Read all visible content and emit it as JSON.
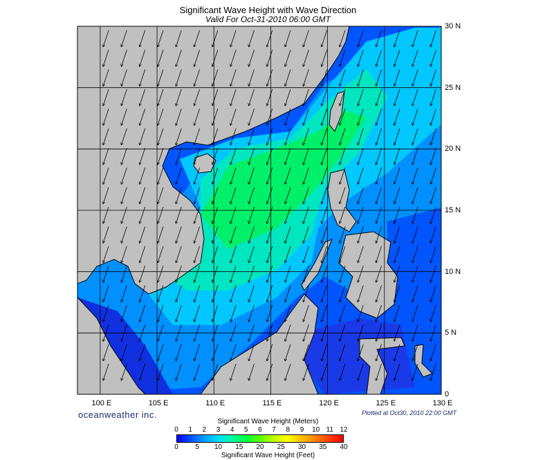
{
  "title": "Significant Wave Height with Wave Direction",
  "subtitle": "Valid For Oct-31-2010 06:00 GMT",
  "map": {
    "lon_range": [
      98,
      130
    ],
    "lat_range": [
      0,
      30
    ],
    "lon_labels": [
      "100 E",
      "105 E",
      "110 E",
      "115 E",
      "120 E",
      "125 E",
      "130 E"
    ],
    "lat_labels": [
      "30 N",
      "25 N",
      "20 N",
      "15 N",
      "10 N",
      "5 N",
      "0"
    ],
    "land_color": "#c0c0c0",
    "grid": true
  },
  "brand": "oceanweather inc.",
  "plotted": "Plotted at Oct30, 2010 22:00 GMT",
  "colorbar": {
    "title_meters": "Significant Wave Height (Meters)",
    "title_feet": "Significant Wave Height (Feet)",
    "meters_ticks": [
      "0",
      "1",
      "2",
      "3",
      "4",
      "5",
      "6",
      "7",
      "8",
      "9",
      "10",
      "11",
      "12"
    ],
    "feet_ticks": [
      "0",
      "5",
      "10",
      "15",
      "20",
      "25",
      "30",
      "35",
      "40"
    ],
    "colors": [
      "#0000ff",
      "#0050ff",
      "#00a0ff",
      "#00e0ff",
      "#00ffa0",
      "#00ff40",
      "#60ff00",
      "#c0ff00",
      "#ffff00",
      "#ffc000",
      "#ff8000",
      "#ff4000",
      "#ff0000"
    ]
  }
}
